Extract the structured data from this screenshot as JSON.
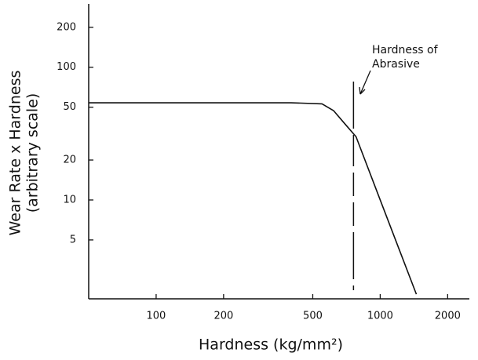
{
  "chart_data": {
    "type": "line",
    "x_label": "Hardness (kg/mm²)",
    "y_label": [
      "Wear Rate x Hardness",
      "(arbitrary scale)"
    ],
    "annotation": [
      "Hardness of",
      "Abrasive"
    ],
    "abrasive_hardness": 760,
    "x": [
      50,
      400,
      550,
      620,
      700,
      780,
      1000,
      1450
    ],
    "series": [
      {
        "color": "#111111",
        "values": [
          54,
          54,
          53,
          47,
          37,
          30,
          10,
          1.95
        ]
      }
    ],
    "xlog": true,
    "ylog": true,
    "xlim": [
      50,
      2500
    ],
    "ylim": [
      1.8,
      300
    ],
    "xticks": [
      100,
      200,
      500,
      1000,
      2000
    ],
    "yticks": [
      5,
      10,
      20,
      50,
      100,
      200
    ]
  }
}
